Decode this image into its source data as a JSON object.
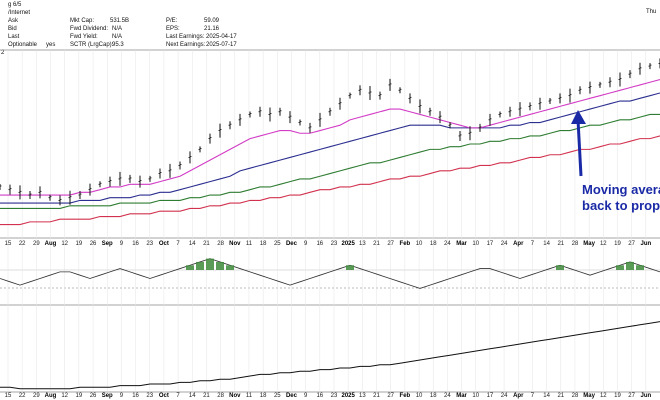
{
  "header": {
    "top_left": "g 6/5",
    "breadcrumb": "/Internet",
    "top_right": "Thu",
    "rows": [
      {
        "label": "Ask",
        "key": "Mkt Cap:",
        "val": "531.5B",
        "key2": "P/E:",
        "val2": "59.09"
      },
      {
        "label": "Bid",
        "key": "Fwd Dividend:",
        "val": "N/A",
        "key2": "EPS:",
        "val2": "21.16"
      },
      {
        "label": "Last",
        "key": "Fwd Yield:",
        "val": "N/A",
        "key2": "Last Earnings:",
        "val2": "2025-04-17"
      },
      {
        "label": "Optionable",
        "label_val": "yes",
        "key": "SCTR (LrgCap):",
        "val": "95.3",
        "key2": "Next Earnings:",
        "val2": "2025-07-17"
      }
    ],
    "side_mark": "2"
  },
  "annotation": {
    "line1": "Moving avera",
    "line2": "back to prope"
  },
  "colors": {
    "price": "#111111",
    "ma_fast": "#d23cc6",
    "ma_mid": "#2b2f8f",
    "ma_slow": "#2f7d32",
    "ma_long": "#d2324f",
    "arrow": "#1a2aa6",
    "osc_fill": "#3c8a3a"
  },
  "chart_data": {
    "type": "line",
    "x_ticks": [
      "15",
      "22",
      "29",
      "Aug",
      "12",
      "19",
      "26",
      "Sep",
      "9",
      "16",
      "23",
      "Oct",
      "7",
      "14",
      "21",
      "28",
      "Nov",
      "11",
      "18",
      "25",
      "Dec",
      "9",
      "16",
      "23",
      "2025",
      "13",
      "21",
      "27",
      "Feb",
      "10",
      "18",
      "24",
      "Mar",
      "10",
      "17",
      "24",
      "Apr",
      "7",
      "14",
      "21",
      "28",
      "May",
      "12",
      "19",
      "27",
      "Jun"
    ],
    "bold_ticks": [
      "Aug",
      "Sep",
      "Oct",
      "Nov",
      "Dec",
      "2025",
      "Feb",
      "Mar",
      "Apr",
      "May",
      "Jun"
    ],
    "series": [
      {
        "values": [
          44,
          43,
          42,
          41,
          42,
          40,
          39,
          40,
          41,
          43,
          45,
          46,
          47,
          47,
          46,
          47,
          49,
          50,
          52,
          55,
          58,
          62,
          65,
          67,
          69,
          71,
          72,
          71,
          72,
          70,
          68,
          66,
          69,
          72,
          75,
          78,
          80,
          79,
          78,
          82,
          80,
          77,
          74,
          72,
          70,
          67,
          63,
          64,
          66,
          69,
          71,
          72,
          73,
          74,
          75,
          76,
          77,
          78,
          80,
          81,
          82,
          83,
          84,
          86,
          88,
          89,
          90
        ]
      },
      {
        "values": [
          41,
          41,
          41,
          41,
          41,
          41,
          41,
          41,
          42,
          42,
          43,
          44,
          44,
          45,
          45,
          45,
          46,
          47,
          48,
          50,
          52,
          54,
          56,
          58,
          60,
          62,
          63,
          64,
          65,
          65,
          64,
          64,
          65,
          66,
          67,
          69,
          70,
          71,
          72,
          73,
          73,
          72,
          71,
          70,
          69,
          68,
          67,
          66,
          66,
          67,
          68,
          69,
          70,
          71,
          72,
          73,
          74,
          75,
          76,
          77,
          78,
          79,
          80,
          81,
          82,
          83,
          84
        ]
      },
      {
        "values": [
          38,
          38,
          38,
          38,
          38,
          38,
          38,
          38,
          39,
          39,
          39,
          40,
          40,
          40,
          41,
          41,
          42,
          42,
          43,
          44,
          45,
          46,
          47,
          48,
          50,
          51,
          52,
          53,
          54,
          55,
          56,
          57,
          58,
          59,
          60,
          61,
          62,
          63,
          64,
          65,
          66,
          67,
          67,
          67,
          67,
          66,
          66,
          66,
          66,
          66,
          66,
          67,
          67,
          68,
          68,
          69,
          70,
          71,
          72,
          73,
          74,
          75,
          76,
          76,
          77,
          78,
          79
        ]
      },
      {
        "values": [
          36,
          36,
          36,
          36,
          36,
          36,
          36,
          37,
          37,
          37,
          37,
          37,
          38,
          38,
          38,
          38,
          39,
          39,
          39,
          40,
          40,
          41,
          41,
          42,
          42,
          43,
          44,
          44,
          45,
          46,
          47,
          47,
          48,
          49,
          50,
          51,
          52,
          53,
          53,
          54,
          55,
          56,
          57,
          58,
          58,
          59,
          59,
          60,
          60,
          61,
          61,
          62,
          62,
          63,
          63,
          64,
          65,
          65,
          66,
          67,
          67,
          68,
          69,
          69,
          70,
          71,
          71
        ]
      },
      {
        "values": [
          30,
          30,
          30,
          31,
          31,
          31,
          32,
          32,
          32,
          32,
          33,
          33,
          33,
          34,
          34,
          34,
          35,
          35,
          35,
          36,
          36,
          37,
          37,
          38,
          38,
          39,
          39,
          40,
          40,
          41,
          41,
          42,
          43,
          43,
          44,
          44,
          45,
          45,
          46,
          47,
          47,
          48,
          48,
          49,
          50,
          50,
          51,
          51,
          52,
          52,
          53,
          53,
          54,
          55,
          55,
          56,
          56,
          57,
          58,
          58,
          59,
          60,
          60,
          61,
          62,
          62,
          63
        ]
      },
      {
        "values": [
          0,
          -1,
          -2,
          -1,
          0,
          1,
          2,
          2,
          1,
          0,
          1,
          2,
          3,
          2,
          1,
          0,
          1,
          2,
          3,
          4,
          5,
          6,
          5,
          4,
          3,
          2,
          1,
          0,
          -1,
          -2,
          -1,
          0,
          1,
          2,
          3,
          4,
          3,
          2,
          1,
          0,
          -1,
          -2,
          -3,
          -2,
          -1,
          0,
          1,
          2,
          3,
          3,
          2,
          1,
          0,
          1,
          2,
          3,
          4,
          3,
          2,
          1,
          2,
          3,
          4,
          5,
          4,
          3,
          2
        ]
      },
      {
        "values": [
          3,
          3,
          2,
          2,
          2,
          2,
          2,
          2,
          3,
          3,
          3,
          3,
          4,
          4,
          4,
          5,
          5,
          5,
          6,
          6,
          7,
          7,
          8,
          8,
          9,
          10,
          11,
          11,
          12,
          12,
          13,
          13,
          14,
          14,
          15,
          15,
          16,
          16,
          17,
          17,
          18,
          19,
          20,
          21,
          22,
          23,
          24,
          25,
          26,
          27,
          28,
          29,
          30,
          31,
          32,
          33,
          34,
          35,
          36,
          37,
          38,
          39,
          40,
          41,
          42,
          43,
          44
        ]
      }
    ]
  }
}
